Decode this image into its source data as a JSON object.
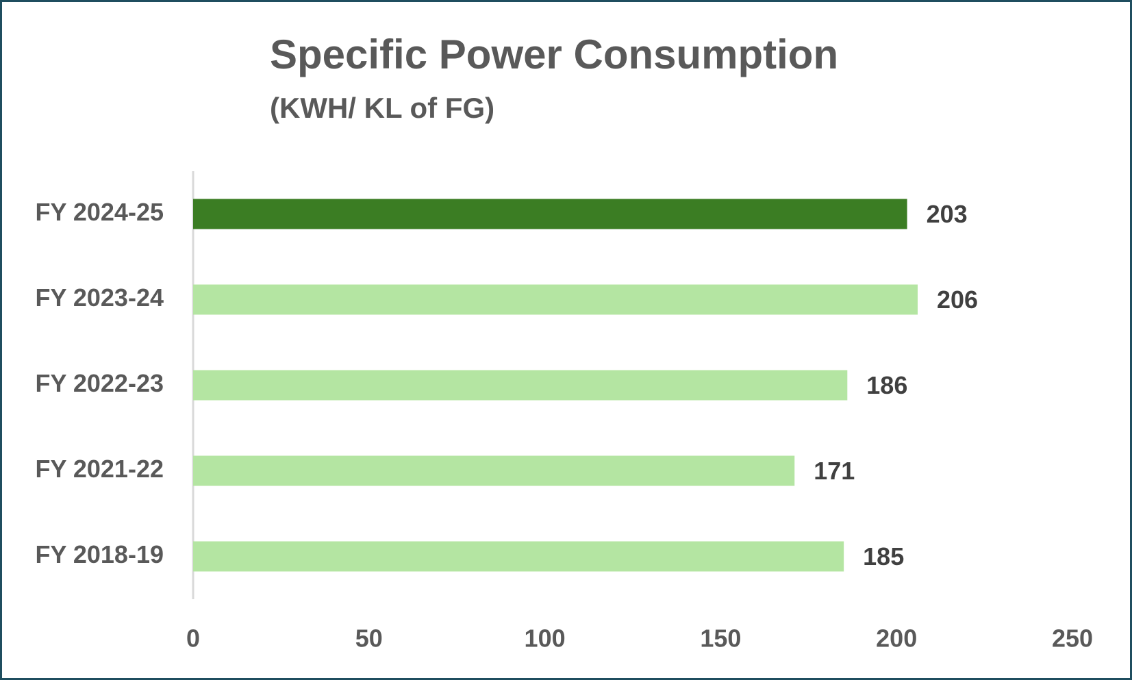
{
  "chart_data": {
    "type": "hbar",
    "title": "Specific Power Consumption",
    "subtitle": "(KWH/ KL of FG)",
    "categories": [
      "FY 2024-25",
      "FY 2023-24",
      "FY 2022-23",
      "FY 2021-22",
      "FY 2018-19"
    ],
    "values": [
      203,
      206,
      186,
      171,
      185
    ],
    "colors": [
      "#3b7d23",
      "#b4e5a2",
      "#b4e5a2",
      "#b4e5a2",
      "#b4e5a2"
    ],
    "xlim": [
      0,
      250
    ],
    "xticks": [
      0,
      50,
      100,
      150,
      200,
      250
    ],
    "grid": false
  }
}
